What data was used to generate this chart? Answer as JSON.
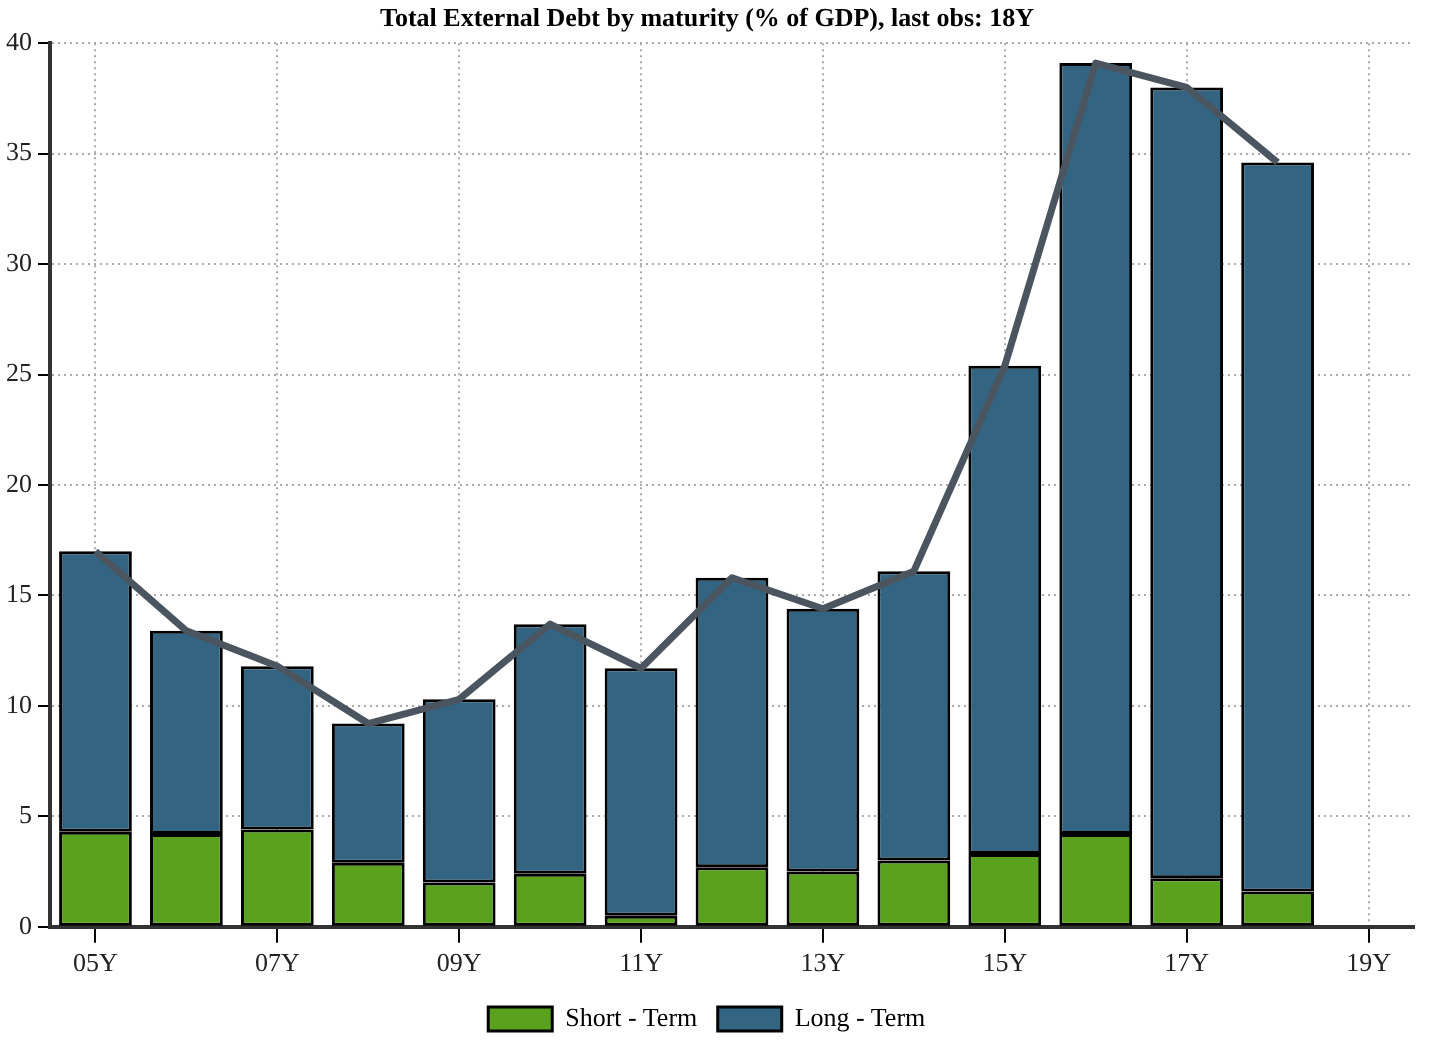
{
  "chart_data": {
    "type": "bar",
    "title": "Total External Debt by maturity (% of GDP), last obs: 18Y",
    "categories": [
      "05Y",
      null,
      "07Y",
      null,
      "09Y",
      null,
      "11Y",
      null,
      "13Y",
      null,
      "15Y",
      null,
      "17Y",
      null,
      "19Y"
    ],
    "stacked": true,
    "series": [
      {
        "name": "Short - Term",
        "color": "#5aa21e",
        "values": [
          4.3,
          4.2,
          4.4,
          2.9,
          2.0,
          2.4,
          0.5,
          2.7,
          2.5,
          3.0,
          3.3,
          4.2,
          2.2,
          1.6,
          null
        ]
      },
      {
        "name": "Long - Term",
        "color": "#336482",
        "values": [
          12.7,
          9.2,
          7.4,
          6.3,
          8.3,
          11.3,
          11.2,
          13.1,
          11.9,
          13.1,
          22.1,
          34.9,
          35.8,
          33.0,
          null
        ]
      },
      {
        "type": "line",
        "color": "#4a5560",
        "values": [
          17.0,
          13.4,
          11.8,
          9.2,
          10.3,
          13.7,
          11.7,
          15.8,
          14.4,
          16.1,
          25.4,
          39.1,
          38.0,
          34.6,
          null
        ]
      }
    ],
    "ylim": [
      0,
      40
    ],
    "yticks": [
      0,
      5,
      10,
      15,
      20,
      25,
      30,
      35,
      40
    ],
    "grid": true,
    "legend": "bottom",
    "marker": "none"
  }
}
